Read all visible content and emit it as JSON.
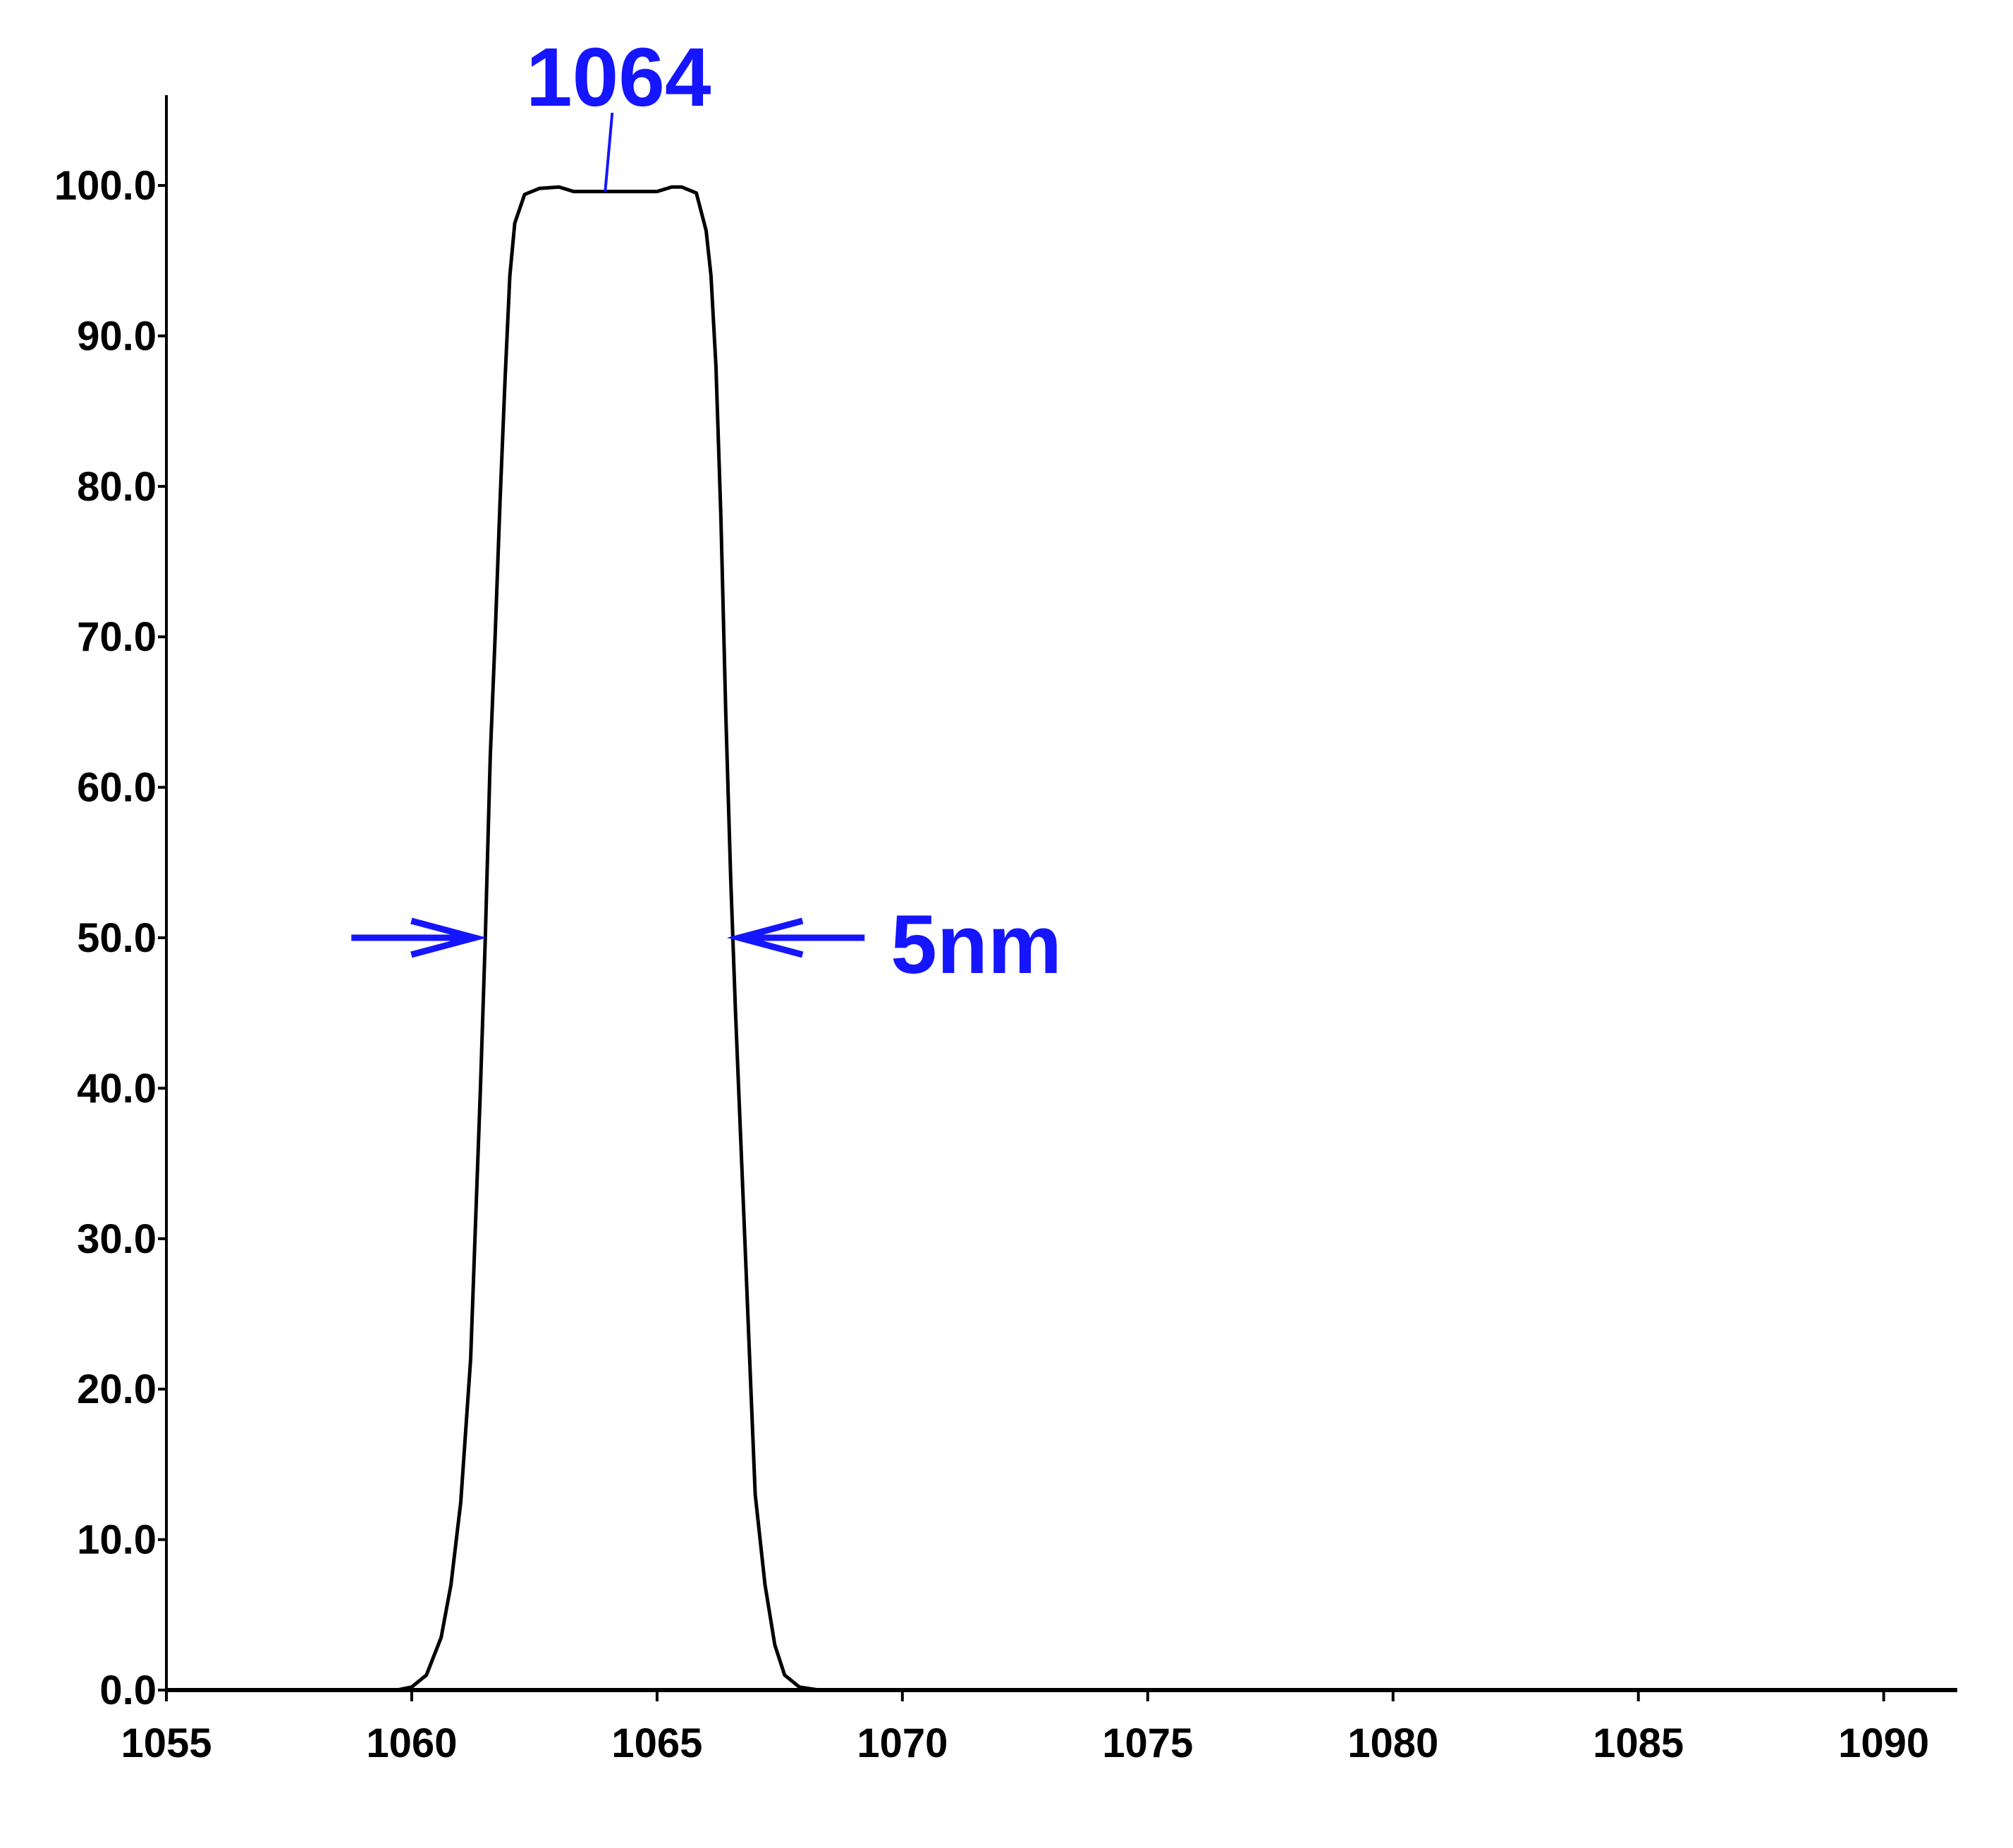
{
  "chart_data": {
    "type": "line",
    "title": "",
    "xlabel": "",
    "ylabel": "",
    "xlim": [
      1055,
      1091.5
    ],
    "ylim": [
      0,
      106
    ],
    "x_ticks": [
      1055,
      1060,
      1065,
      1070,
      1075,
      1080,
      1085,
      1090
    ],
    "x_tick_labels": [
      "1055",
      "1060",
      "1065",
      "1070",
      "1075",
      "1080",
      "1085",
      "1090"
    ],
    "y_ticks": [
      0,
      10,
      20,
      30,
      40,
      50,
      60,
      70,
      80,
      90,
      100
    ],
    "y_tick_labels": [
      "0.0",
      "10.0",
      "20.0",
      "30.0",
      "40.0",
      "50.0",
      "60.0",
      "70.0",
      "80.0",
      "90.0",
      "100.0"
    ],
    "grid": false,
    "series": [
      {
        "color": "#000000",
        "x": [
          1059.7,
          1060.0,
          1060.3,
          1060.6,
          1060.8,
          1061.0,
          1061.2,
          1061.3,
          1061.4,
          1061.5,
          1061.6,
          1061.7,
          1061.8,
          1061.9,
          1062.0,
          1062.1,
          1062.3,
          1062.6,
          1063.0,
          1063.3,
          1063.5,
          1064.0,
          1064.5,
          1065.0,
          1065.3,
          1065.5,
          1065.8,
          1066.0,
          1066.1,
          1066.2,
          1066.3,
          1066.4,
          1066.5,
          1066.6,
          1066.7,
          1066.8,
          1066.9,
          1067.0,
          1067.2,
          1067.4,
          1067.6,
          1067.9,
          1068.3
        ],
        "y": [
          0,
          0.2,
          1.0,
          3.5,
          7.0,
          12.5,
          22.0,
          31.0,
          40.0,
          50.0,
          62.0,
          70.0,
          79.0,
          87.0,
          94.0,
          97.5,
          99.4,
          99.8,
          99.9,
          99.6,
          99.6,
          99.6,
          99.6,
          99.6,
          99.9,
          99.9,
          99.5,
          97.0,
          94.0,
          88.0,
          78.0,
          65.0,
          54.0,
          45.0,
          37.0,
          29.0,
          21.0,
          13.0,
          7.0,
          3.0,
          1.0,
          0.2,
          0.0
        ]
      }
    ],
    "annotations": {
      "peak_label": "1064",
      "peak_x": 1064,
      "bandwidth_label": "5nm",
      "bandwidth_level": 50,
      "bandwidth_bounds": [
        1061.5,
        1066.5
      ],
      "color": "#1515ff"
    }
  }
}
